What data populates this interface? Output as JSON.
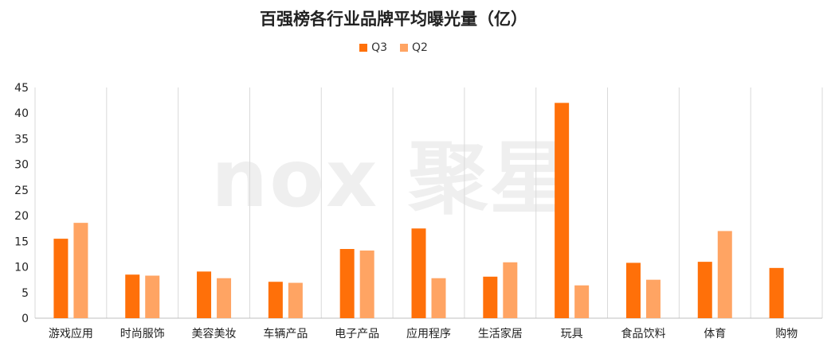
{
  "chart_data": {
    "type": "bar",
    "title": "百强榜各行业品牌平均曝光量（亿）",
    "categories": [
      "游戏应用",
      "时尚服饰",
      "美容美妆",
      "车辆产品",
      "电子产品",
      "应用程序",
      "生活家居",
      "玩具",
      "食品饮料",
      "体育",
      "购物"
    ],
    "series": [
      {
        "name": "Q3",
        "color": "#FF7009",
        "values": [
          15.5,
          8.5,
          9.1,
          7.1,
          13.5,
          17.5,
          8.1,
          42.0,
          10.8,
          11.0,
          9.8
        ]
      },
      {
        "name": "Q2",
        "color": "#FFA463",
        "values": [
          18.6,
          8.3,
          7.8,
          6.9,
          13.2,
          7.8,
          10.9,
          6.4,
          7.5,
          17.0,
          null
        ]
      }
    ],
    "ylim": [
      0,
      45
    ],
    "yticks": [
      0,
      5,
      10,
      15,
      20,
      25,
      30,
      35,
      40,
      45
    ],
    "grid": "vertical",
    "legend_position": "top-center",
    "watermark": "nox 聚星"
  }
}
